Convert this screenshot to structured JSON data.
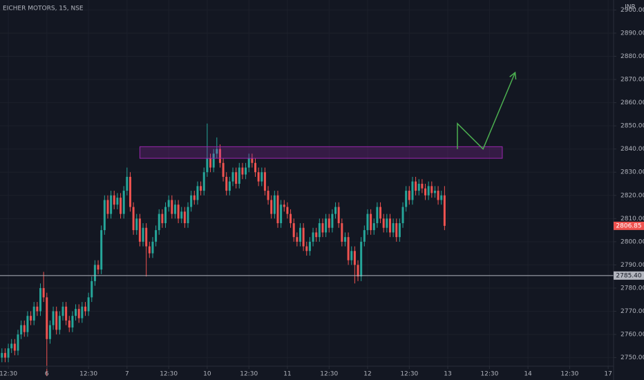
{
  "chart_data": {
    "type": "candlestick",
    "title": "EICHER MOTORS, 15, NSE",
    "currency": "INR",
    "up_color": "#26a69a",
    "down_color": "#ef5350",
    "x": [
      -14,
      -13,
      -12,
      -11,
      -10,
      -9,
      -8,
      -7,
      -6,
      -5,
      -4,
      -3,
      -2,
      -1,
      0,
      1,
      2,
      3,
      4,
      5,
      6,
      7,
      8,
      9,
      10,
      11,
      12,
      13,
      14,
      15,
      16,
      17,
      18,
      19,
      20,
      21,
      22,
      23,
      24,
      25,
      26,
      27,
      28,
      29,
      30,
      31,
      32,
      33,
      34,
      35,
      36,
      37,
      38,
      39,
      40,
      41,
      42,
      43,
      44,
      45,
      46,
      47,
      48,
      49,
      50,
      51,
      52,
      53,
      54,
      55,
      56,
      57,
      58,
      59,
      60,
      61,
      62,
      63,
      64,
      65,
      66,
      67,
      68,
      69,
      70,
      71,
      72,
      73,
      74,
      75,
      76,
      77,
      78,
      79,
      80,
      81,
      82,
      83,
      84,
      85,
      86,
      87,
      88,
      89,
      90,
      91,
      92,
      93,
      94,
      95,
      96,
      97,
      98,
      99,
      100,
      101,
      102,
      103,
      104,
      105,
      106,
      107,
      108,
      109,
      110,
      111,
      112,
      113,
      114,
      115,
      116,
      117,
      118,
      119,
      120,
      121,
      122,
      123,
      124
    ],
    "open": [
      2750,
      2752,
      2750,
      2754,
      2756,
      2753,
      2760,
      2764,
      2761,
      2768,
      2766,
      2772,
      2770,
      2780,
      2776,
      2758,
      2764,
      2770,
      2762,
      2768,
      2772,
      2766,
      2763,
      2768,
      2771,
      2767,
      2772,
      2770,
      2776,
      2783,
      2790,
      2788,
      2805,
      2818,
      2812,
      2820,
      2816,
      2819,
      2812,
      2822,
      2828,
      2815,
      2805,
      2810,
      2800,
      2806,
      2798,
      2795,
      2800,
      2805,
      2812,
      2808,
      2815,
      2818,
      2812,
      2816,
      2810,
      2813,
      2808,
      2815,
      2820,
      2818,
      2824,
      2822,
      2830,
      2836,
      2832,
      2838,
      2840,
      2834,
      2828,
      2822,
      2826,
      2830,
      2825,
      2832,
      2829,
      2832,
      2836,
      2834,
      2830,
      2826,
      2830,
      2822,
      2818,
      2812,
      2820,
      2808,
      2816,
      2815,
      2812,
      2808,
      2802,
      2800,
      2806,
      2798,
      2796,
      2800,
      2804,
      2802,
      2808,
      2804,
      2810,
      2806,
      2812,
      2815,
      2808,
      2800,
      2802,
      2792,
      2796,
      2790,
      2785,
      2800,
      2805,
      2812,
      2805,
      2808,
      2815,
      2810,
      2806,
      2810,
      2804,
      2808,
      2802,
      2808,
      2815,
      2822,
      2818,
      2826,
      2822,
      2825,
      2823,
      2820,
      2824,
      2821,
      2822,
      2818,
      2820
    ],
    "high": [
      2754,
      2754,
      2756,
      2758,
      2758,
      2762,
      2766,
      2766,
      2770,
      2770,
      2774,
      2774,
      2782,
      2787,
      2778,
      2766,
      2772,
      2772,
      2770,
      2774,
      2774,
      2768,
      2770,
      2773,
      2773,
      2774,
      2774,
      2778,
      2785,
      2792,
      2792,
      2807,
      2820,
      2820,
      2822,
      2822,
      2821,
      2821,
      2824,
      2832,
      2830,
      2817,
      2812,
      2812,
      2808,
      2808,
      2800,
      2802,
      2807,
      2814,
      2814,
      2817,
      2820,
      2820,
      2818,
      2818,
      2815,
      2815,
      2817,
      2822,
      2822,
      2826,
      2826,
      2832,
      2851,
      2838,
      2840,
      2845,
      2842,
      2836,
      2830,
      2828,
      2832,
      2832,
      2834,
      2834,
      2834,
      2838,
      2838,
      2836,
      2832,
      2832,
      2832,
      2824,
      2820,
      2822,
      2822,
      2818,
      2818,
      2817,
      2814,
      2810,
      2804,
      2808,
      2808,
      2800,
      2802,
      2806,
      2806,
      2810,
      2810,
      2812,
      2812,
      2814,
      2817,
      2817,
      2810,
      2804,
      2804,
      2798,
      2798,
      2792,
      2802,
      2807,
      2814,
      2814,
      2810,
      2817,
      2817,
      2812,
      2812,
      2812,
      2810,
      2810,
      2810,
      2817,
      2824,
      2824,
      2828,
      2828,
      2827,
      2827,
      2825,
      2826,
      2826,
      2824,
      2824,
      2822,
      2824
    ],
    "low": [
      2748,
      2748,
      2748,
      2752,
      2751,
      2751,
      2758,
      2759,
      2759,
      2764,
      2764,
      2768,
      2768,
      2774,
      2742,
      2756,
      2762,
      2760,
      2760,
      2766,
      2764,
      2761,
      2761,
      2766,
      2765,
      2765,
      2768,
      2768,
      2774,
      2781,
      2786,
      2786,
      2803,
      2810,
      2810,
      2814,
      2814,
      2810,
      2810,
      2820,
      2813,
      2803,
      2803,
      2798,
      2798,
      2785,
      2793,
      2793,
      2798,
      2803,
      2806,
      2806,
      2813,
      2810,
      2810,
      2808,
      2808,
      2806,
      2806,
      2813,
      2816,
      2816,
      2820,
      2820,
      2828,
      2830,
      2830,
      2836,
      2832,
      2826,
      2820,
      2820,
      2824,
      2823,
      2823,
      2827,
      2827,
      2830,
      2832,
      2828,
      2824,
      2824,
      2820,
      2816,
      2810,
      2810,
      2806,
      2806,
      2813,
      2810,
      2806,
      2800,
      2798,
      2798,
      2796,
      2794,
      2794,
      2798,
      2800,
      2800,
      2802,
      2802,
      2804,
      2804,
      2810,
      2806,
      2798,
      2798,
      2790,
      2790,
      2782,
      2783,
      2783,
      2798,
      2803,
      2803,
      2803,
      2806,
      2808,
      2804,
      2804,
      2802,
      2802,
      2800,
      2800,
      2806,
      2813,
      2816,
      2816,
      2820,
      2820,
      2821,
      2818,
      2818,
      2819,
      2819,
      2816,
      2816,
      2805
    ],
    "close": [
      2752,
      2750,
      2754,
      2756,
      2753,
      2760,
      2764,
      2761,
      2768,
      2766,
      2772,
      2770,
      2780,
      2776,
      2758,
      2764,
      2770,
      2762,
      2768,
      2772,
      2766,
      2763,
      2768,
      2771,
      2767,
      2772,
      2770,
      2776,
      2783,
      2790,
      2788,
      2805,
      2818,
      2812,
      2820,
      2816,
      2819,
      2812,
      2822,
      2828,
      2815,
      2805,
      2810,
      2800,
      2806,
      2798,
      2795,
      2800,
      2805,
      2812,
      2808,
      2815,
      2818,
      2812,
      2816,
      2810,
      2813,
      2808,
      2815,
      2820,
      2818,
      2824,
      2822,
      2830,
      2836,
      2832,
      2838,
      2840,
      2834,
      2828,
      2822,
      2826,
      2830,
      2825,
      2832,
      2829,
      2832,
      2836,
      2834,
      2830,
      2826,
      2830,
      2822,
      2818,
      2812,
      2820,
      2808,
      2816,
      2815,
      2812,
      2808,
      2802,
      2800,
      2806,
      2798,
      2796,
      2800,
      2804,
      2802,
      2808,
      2804,
      2810,
      2806,
      2812,
      2815,
      2808,
      2800,
      2802,
      2792,
      2796,
      2790,
      2785,
      2800,
      2805,
      2812,
      2805,
      2808,
      2815,
      2810,
      2806,
      2810,
      2804,
      2808,
      2802,
      2808,
      2815,
      2822,
      2818,
      2826,
      2822,
      2825,
      2823,
      2820,
      2824,
      2821,
      2822,
      2818,
      2820,
      2806.85
    ],
    "xlim": [
      -14.6,
      176.7
    ],
    "xticks": [
      {
        "value": -12,
        "label": "12:30"
      },
      {
        "value": 0,
        "label": "6"
      },
      {
        "value": 13,
        "label": "12:30"
      },
      {
        "value": 25,
        "label": "7"
      },
      {
        "value": 38,
        "label": "12:30"
      },
      {
        "value": 50,
        "label": "10"
      },
      {
        "value": 63,
        "label": "12:30"
      },
      {
        "value": 75,
        "label": "11"
      },
      {
        "value": 88,
        "label": "12:30"
      },
      {
        "value": 100,
        "label": "12"
      },
      {
        "value": 113,
        "label": "12:30"
      },
      {
        "value": 125,
        "label": "13"
      },
      {
        "value": 138,
        "label": "12:30"
      },
      {
        "value": 150,
        "label": "14"
      },
      {
        "value": 163,
        "label": "12:30"
      },
      {
        "value": 175,
        "label": "17"
      }
    ],
    "ylim": [
      2746.3,
      2904.3
    ],
    "yticks": [
      {
        "value": 2750,
        "label": "2750.00"
      },
      {
        "value": 2760,
        "label": "2760.00"
      },
      {
        "value": 2770,
        "label": "2770.00"
      },
      {
        "value": 2780,
        "label": "2780.00"
      },
      {
        "value": 2790,
        "label": "2790.00"
      },
      {
        "value": 2800,
        "label": "2800.00"
      },
      {
        "value": 2810,
        "label": "2810.00"
      },
      {
        "value": 2820,
        "label": "2820.00"
      },
      {
        "value": 2830,
        "label": "2830.00"
      },
      {
        "value": 2840,
        "label": "2840.00"
      },
      {
        "value": 2850,
        "label": "2850.00"
      },
      {
        "value": 2860,
        "label": "2860.00"
      },
      {
        "value": 2870,
        "label": "2870.00"
      },
      {
        "value": 2880,
        "label": "2880.00"
      },
      {
        "value": 2890,
        "label": "2890.00"
      },
      {
        "value": 2900,
        "label": "2900.00"
      }
    ],
    "grid": true,
    "hline": {
      "value": 2785.4,
      "label": "2785.40",
      "color": "#b2b5be"
    },
    "zone": {
      "x": [
        29,
        142
      ],
      "y": [
        2836,
        2841
      ],
      "color": "#9c27b0"
    },
    "arrow": {
      "x": [
        128,
        128,
        136,
        146
      ],
      "y": [
        2840,
        2851,
        2840,
        2873
      ],
      "color": "#4caf50"
    }
  }
}
